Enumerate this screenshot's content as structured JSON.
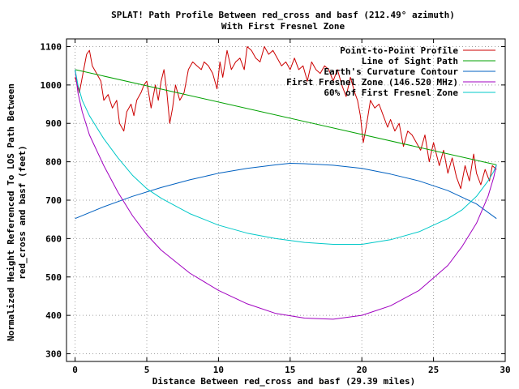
{
  "chart_data": {
    "type": "line",
    "title": "SPLAT! Path Profile Between red_cross and basf (212.49° azimuth)",
    "subtitle": "With First Fresnel Zone",
    "xlabel": "Distance Between red_cross and basf (29.39 miles)",
    "ylabel_line1": "Normalized Height Referenced To LOS Path Between",
    "ylabel_line2": "red_cross and basf (feet)",
    "xlim": [
      -0.6,
      30
    ],
    "ylim": [
      280,
      1120
    ],
    "xticks": [
      "0",
      "5",
      "10",
      "15",
      "20",
      "25",
      "30"
    ],
    "yticks": [
      "300",
      "400",
      "500",
      "600",
      "700",
      "800",
      "900",
      "1000",
      "1100"
    ],
    "grid": true,
    "legend_position": "top-right",
    "series": [
      {
        "name": "Point-to-Point Profile",
        "color": "#cc0000",
        "x": [
          0,
          0.3,
          0.6,
          0.8,
          1.0,
          1.2,
          1.5,
          1.8,
          2.0,
          2.3,
          2.6,
          2.9,
          3.1,
          3.4,
          3.6,
          3.9,
          4.1,
          4.3,
          4.6,
          4.8,
          5.0,
          5.3,
          5.6,
          5.8,
          6.0,
          6.2,
          6.4,
          6.6,
          6.8,
          7.0,
          7.3,
          7.6,
          7.9,
          8.2,
          8.5,
          8.8,
          9.0,
          9.3,
          9.6,
          9.9,
          10.1,
          10.3,
          10.6,
          10.9,
          11.2,
          11.5,
          11.8,
          12.0,
          12.3,
          12.6,
          12.9,
          13.2,
          13.5,
          13.8,
          14.1,
          14.4,
          14.7,
          15.0,
          15.3,
          15.6,
          15.9,
          16.2,
          16.5,
          16.8,
          17.1,
          17.4,
          17.7,
          18.0,
          18.3,
          18.6,
          18.9,
          19.2,
          19.5,
          19.7,
          19.9,
          20.1,
          20.3,
          20.6,
          20.9,
          21.2,
          21.5,
          21.8,
          22.0,
          22.3,
          22.6,
          22.9,
          23.2,
          23.5,
          23.8,
          24.1,
          24.4,
          24.7,
          25.0,
          25.2,
          25.4,
          25.7,
          26.0,
          26.3,
          26.6,
          26.9,
          27.2,
          27.5,
          27.8,
          28.0,
          28.3,
          28.6,
          28.9,
          29.1,
          29.39
        ],
        "y": [
          1020,
          980,
          1040,
          1080,
          1090,
          1050,
          1030,
          1010,
          960,
          975,
          940,
          960,
          900,
          880,
          930,
          950,
          920,
          960,
          980,
          1000,
          1010,
          940,
          1000,
          960,
          1010,
          1040,
          980,
          900,
          940,
          1000,
          960,
          980,
          1040,
          1060,
          1050,
          1040,
          1060,
          1050,
          1030,
          990,
          1060,
          1020,
          1090,
          1040,
          1060,
          1070,
          1040,
          1100,
          1090,
          1070,
          1060,
          1100,
          1080,
          1090,
          1070,
          1050,
          1060,
          1040,
          1070,
          1040,
          1050,
          1010,
          1060,
          1040,
          1030,
          1050,
          1040,
          1010,
          1040,
          1000,
          970,
          1020,
          980,
          960,
          920,
          850,
          890,
          960,
          940,
          950,
          920,
          890,
          910,
          880,
          900,
          840,
          880,
          870,
          850,
          830,
          870,
          800,
          850,
          820,
          790,
          830,
          770,
          810,
          760,
          730,
          790,
          750,
          820,
          770,
          740,
          780,
          750,
          790,
          780
        ]
      },
      {
        "name": "Line of Sight Path",
        "color": "#00a000",
        "x": [
          0,
          29.39
        ],
        "y": [
          1040,
          792
        ]
      },
      {
        "name": "Earth's Curvature Contour",
        "color": "#0060c0",
        "x": [
          0,
          2,
          4,
          6,
          8,
          10,
          12,
          14,
          15,
          16,
          18,
          20,
          22,
          24,
          26,
          28,
          29.39
        ],
        "y": [
          652,
          683,
          710,
          733,
          753,
          770,
          783,
          792,
          796,
          795,
          791,
          783,
          768,
          750,
          725,
          690,
          652
        ]
      },
      {
        "name": "First Fresnel Zone (146.520 MHz)",
        "color": "#a000c0",
        "x": [
          0,
          0.2,
          0.5,
          1,
          2,
          3,
          4,
          5,
          6,
          8,
          10,
          12,
          14,
          16,
          18,
          20,
          22,
          24,
          26,
          27,
          28,
          28.8,
          29.2,
          29.39
        ],
        "y": [
          1040,
          980,
          930,
          870,
          790,
          720,
          660,
          610,
          570,
          510,
          465,
          430,
          405,
          393,
          390,
          400,
          425,
          465,
          530,
          580,
          640,
          710,
          760,
          792
        ]
      },
      {
        "name": "60% of First Fresnel Zone",
        "color": "#00c8c8",
        "x": [
          0,
          0.2,
          0.5,
          1,
          2,
          3,
          4,
          5,
          6,
          8,
          10,
          12,
          14,
          16,
          18,
          20,
          22,
          24,
          26,
          27,
          28,
          28.8,
          29.2,
          29.39
        ],
        "y": [
          1040,
          1000,
          960,
          920,
          860,
          810,
          765,
          730,
          705,
          665,
          635,
          614,
          600,
          590,
          585,
          585,
          597,
          618,
          652,
          675,
          710,
          750,
          775,
          792
        ]
      }
    ]
  }
}
